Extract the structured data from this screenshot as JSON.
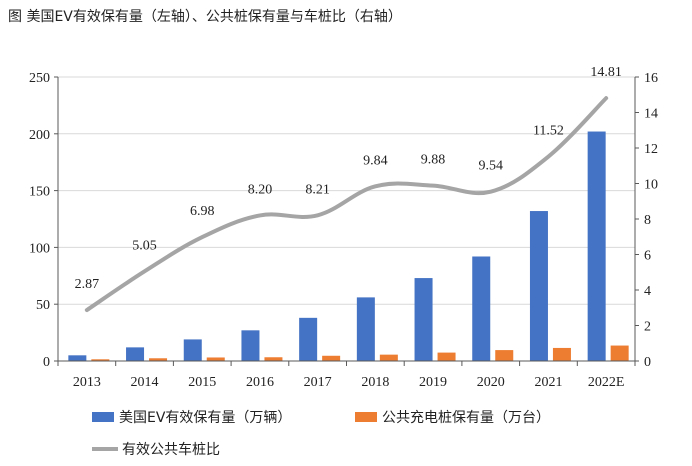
{
  "chart_data": {
    "type": "bar",
    "title": "图  美国EV有效保有量（左轴）、公共桩保有量与车桩比（右轴）",
    "categories": [
      "2013",
      "2014",
      "2015",
      "2016",
      "2017",
      "2018",
      "2019",
      "2020",
      "2021",
      "2022E"
    ],
    "series": [
      {
        "name": "美国EV有效保有量（万辆）",
        "type": "bar",
        "axis": "left",
        "values": [
          5,
          12,
          19,
          27,
          38,
          56,
          73,
          92,
          132,
          202
        ],
        "color": "#4472C4"
      },
      {
        "name": "公共充电桩保有量（万台）",
        "type": "bar",
        "axis": "left",
        "values": [
          1.5,
          2.4,
          3.1,
          3.3,
          4.6,
          5.6,
          7.4,
          9.6,
          11.5,
          13.6
        ],
        "color": "#ED7D31"
      },
      {
        "name": "有效公共车桩比",
        "type": "line",
        "axis": "right",
        "values": [
          2.87,
          5.05,
          6.98,
          8.2,
          8.21,
          9.84,
          9.88,
          9.54,
          11.52,
          14.81
        ],
        "labels": [
          "2.87",
          "5.05",
          "6.98",
          "8.20",
          "8.21",
          "9.84",
          "9.88",
          "9.54",
          "11.52",
          "14.81"
        ],
        "color": "#A5A5A5"
      }
    ],
    "ylim": [
      0,
      250
    ],
    "yticks": [
      "0",
      "50",
      "100",
      "150",
      "200",
      "250"
    ],
    "y2lim": [
      0,
      16
    ],
    "y2ticks": [
      "0",
      "2",
      "4",
      "6",
      "8",
      "10",
      "12",
      "14",
      "16"
    ],
    "grid": true,
    "legend": "bottom"
  }
}
